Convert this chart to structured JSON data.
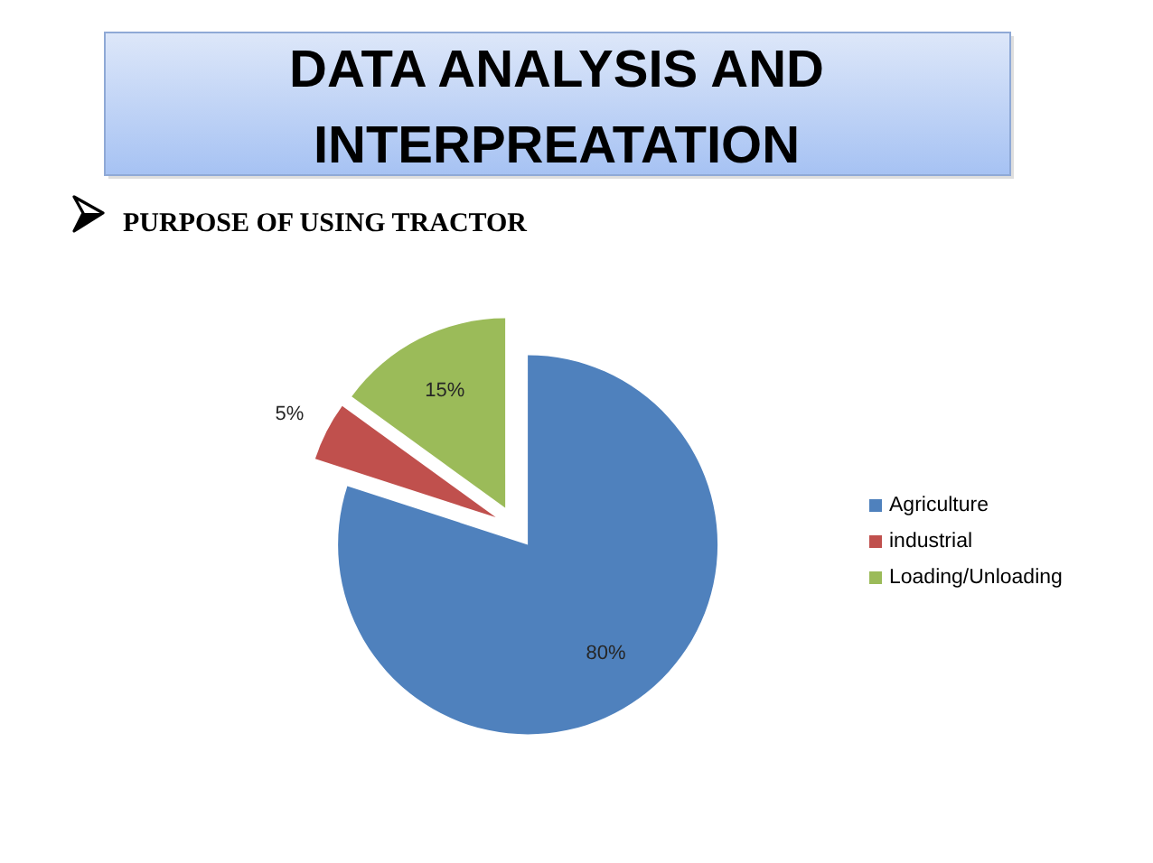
{
  "chart_data": {
    "type": "pie",
    "title": "DATA ANALYSIS AND INTERPREATATION",
    "subtitle": "PURPOSE OF USING TRACTOR",
    "categories": [
      "Agriculture",
      "industrial",
      "Loading/Unloading"
    ],
    "values": [
      80,
      5,
      15
    ],
    "colors": [
      "#4f81bd",
      "#c0504d",
      "#9bbb59"
    ],
    "value_labels": [
      "80%",
      "5%",
      "15%"
    ],
    "legend": "right"
  }
}
